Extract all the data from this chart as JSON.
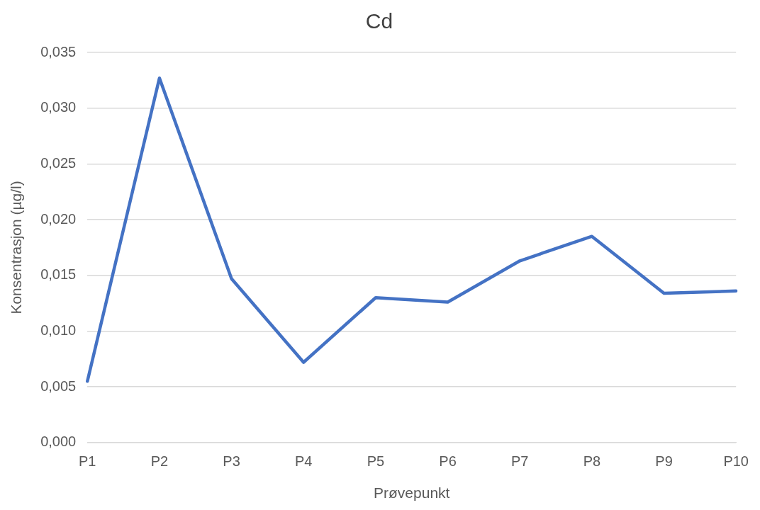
{
  "chart_data": {
    "type": "line",
    "title": "Cd",
    "xlabel": "Prøvepunkt",
    "ylabel": "Konsentrasjon (µg/l)",
    "categories": [
      "P1",
      "P2",
      "P3",
      "P4",
      "P5",
      "P6",
      "P7",
      "P8",
      "P9",
      "P10"
    ],
    "series": [
      {
        "color": "#4472c4",
        "values": [
          0.0055,
          0.0327,
          0.0147,
          0.0072,
          0.013,
          0.0126,
          0.0163,
          0.0185,
          0.0134,
          0.0136
        ]
      }
    ],
    "ylim": [
      0,
      0.035
    ],
    "yticks": [
      {
        "value": 0,
        "label": "0,000"
      },
      {
        "value": 0.005,
        "label": "0,005"
      },
      {
        "value": 0.01,
        "label": "0,010"
      },
      {
        "value": 0.015,
        "label": "0,015"
      },
      {
        "value": 0.02,
        "label": "0,020"
      },
      {
        "value": 0.025,
        "label": "0,025"
      },
      {
        "value": 0.03,
        "label": "0,030"
      },
      {
        "value": 0.035,
        "label": "0,035"
      }
    ],
    "grid": "y",
    "legend": false,
    "marker": "none",
    "line_style": "solid"
  }
}
